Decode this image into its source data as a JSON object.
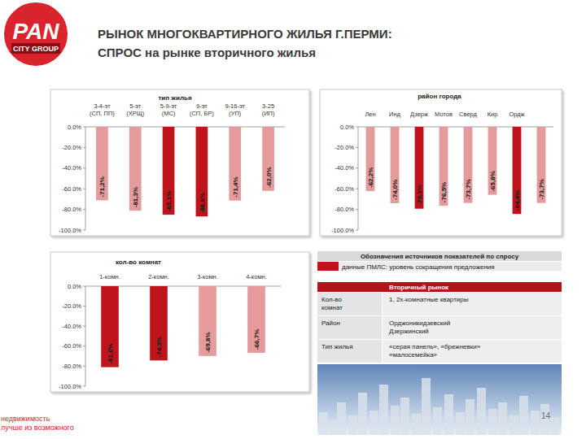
{
  "header": {
    "title_lines": [
      "РЫНОК МНОГОКВАРТИРНОГО ЖИЛЬЯ Г.ПЕРМИ:",
      "СПРОС на рынке вторичного жилья"
    ]
  },
  "logo": {
    "lines": [
      "PAN",
      "CITY GROUP"
    ]
  },
  "chart_data": [
    {
      "type": "bar",
      "title": "тип жилья",
      "categories": [
        "3-4-эт (СП, ПП)",
        "5-эт (ХРЩ)",
        "5-9-эт (МС)",
        "9-эт (СП, БР)",
        "9-16-эт (УП)",
        "3-25 (ИП)"
      ],
      "values": [
        -71.2,
        -81.3,
        -85.1,
        -86.8,
        -71.4,
        -62.0
      ],
      "value_labels": [
        "-71,2%",
        "-81,3%",
        "-85,1%",
        "-86,8%",
        "-71,4%",
        "-62,0%"
      ],
      "colors": [
        "#e59a9c",
        "#e59a9c",
        "#c0141c",
        "#c0141c",
        "#e59a9c",
        "#e59a9c"
      ],
      "ylim": [
        -100,
        0
      ],
      "yticks": [
        {
          "value": 0,
          "label": "0.0%"
        },
        {
          "value": -20,
          "label": "-20.0%"
        },
        {
          "value": -40,
          "label": "-40.0%"
        },
        {
          "value": -60,
          "label": "-60.0%"
        },
        {
          "value": -80,
          "label": "-80.0%"
        },
        {
          "value": -100,
          "label": "-100.0%"
        }
      ],
      "grid": false,
      "data_labels": true
    },
    {
      "type": "bar",
      "title": "район города",
      "categories": [
        "Лен",
        "Инд",
        "Дзерж",
        "Мотов",
        "Сверд",
        "Кир",
        "Ордж",
        null
      ],
      "values": [
        -62.2,
        -74.0,
        -79.3,
        -76.5,
        -73.7,
        -65.8,
        -84.4,
        -73.7
      ],
      "value_labels": [
        "-62,2%",
        "-74,0%",
        "-79,3%",
        "-76,5%",
        "-73,7%",
        "-65,8%",
        "-84,4%",
        "-73,7%"
      ],
      "colors": [
        "#e59a9c",
        "#e59a9c",
        "#c0141c",
        "#e59a9c",
        "#e59a9c",
        "#e59a9c",
        "#c0141c",
        "#e59a9c"
      ],
      "ylim": [
        -100,
        0
      ],
      "yticks": [
        {
          "value": 0,
          "label": "0.0%"
        },
        {
          "value": -20,
          "label": "-20.0%"
        },
        {
          "value": -40,
          "label": "-40.0%"
        },
        {
          "value": -60,
          "label": "-60.0%"
        },
        {
          "value": -80,
          "label": "-80.0%"
        },
        {
          "value": -100,
          "label": "-100.0%"
        }
      ],
      "grid": false,
      "data_labels": true
    },
    {
      "type": "bar",
      "title": "кол-во комнат",
      "categories": [
        "1-комн.",
        "2-комн.",
        "3-комн.",
        "4-комн."
      ],
      "values": [
        -81.0,
        -74.3,
        -69.8,
        -66.7
      ],
      "value_labels": [
        "-81,0%",
        "-74,3%",
        "-69,8%",
        "-66,7%"
      ],
      "colors": [
        "#c0141c",
        "#c0141c",
        "#e59a9c",
        "#e59a9c"
      ],
      "ylim": [
        -100,
        0
      ],
      "yticks": [
        {
          "value": 0,
          "label": "0.0%"
        },
        {
          "value": -20,
          "label": "-20.0%"
        },
        {
          "value": -40,
          "label": "-40.0%"
        },
        {
          "value": -60,
          "label": "-60.0%"
        },
        {
          "value": -80,
          "label": "-80.0%"
        },
        {
          "value": -100,
          "label": "-100.0%"
        }
      ],
      "grid": false,
      "data_labels": true
    }
  ],
  "source_legend": {
    "title": "Обозначения источников показателей по спросу",
    "items": [
      {
        "label": "данные ПМЛС: уровень сокращения предложения",
        "color": "#c0141c"
      }
    ]
  },
  "table": {
    "header": "Вторичный рынок",
    "rows": [
      [
        "Кол-во комнат",
        [
          "1, 2х-комнатные квартиры"
        ]
      ],
      [
        "Район",
        [
          "Орджоникидзевский",
          "Дзержинский"
        ]
      ],
      [
        "Тип жилья",
        [
          "«серая панель», «брежневки»",
          "«малосемейка»"
        ]
      ]
    ]
  },
  "footer": {
    "slogan": [
      "недвижимость",
      "лучше из возможного"
    ],
    "page": 14
  }
}
